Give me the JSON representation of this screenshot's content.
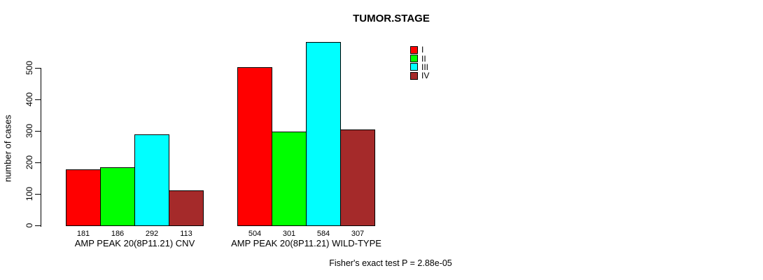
{
  "chart_data": {
    "type": "bar",
    "title": "TUMOR.STAGE",
    "ylabel": "number of cases",
    "ylim": [
      0,
      500
    ],
    "yticks": [
      0,
      100,
      200,
      300,
      400,
      500
    ],
    "grid": false,
    "legend_position": "top-right",
    "bar_border_color": "#000000",
    "categories": [
      "AMP PEAK 20(8P11.21) CNV",
      "AMP PEAK 20(8P11.21) WILD-TYPE"
    ],
    "series": [
      {
        "name": "I",
        "color": "#FF0000",
        "values": [
          181,
          504
        ]
      },
      {
        "name": "II",
        "color": "#00FF00",
        "values": [
          186,
          301
        ]
      },
      {
        "name": "III",
        "color": "#00FFFF",
        "values": [
          292,
          584
        ]
      },
      {
        "name": "IV",
        "color": "#A52A2A",
        "values": [
          113,
          307
        ]
      }
    ],
    "bar_value_labels": [
      [
        181,
        186,
        292,
        113
      ],
      [
        504,
        301,
        584,
        307
      ]
    ],
    "annotation": "Fisher's exact test P = 2.88e-05"
  }
}
